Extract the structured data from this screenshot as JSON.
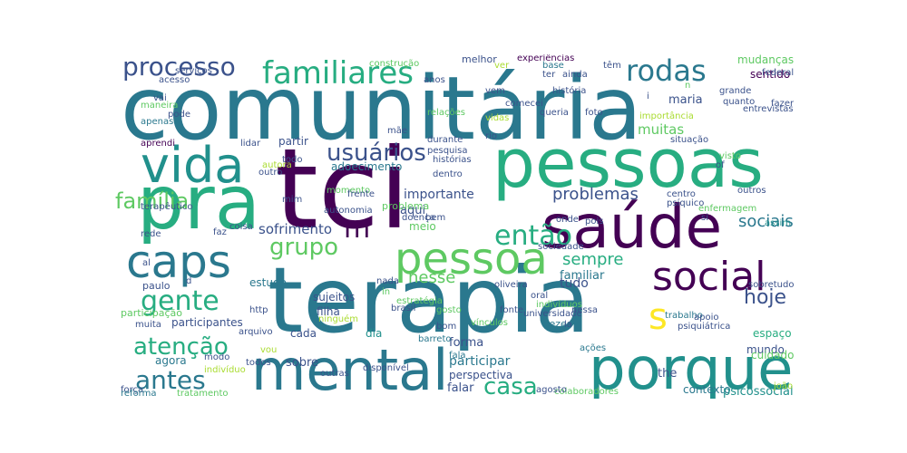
{
  "word_cloud": {
    "palette": [
      "#440154",
      "#3b528b",
      "#2a788e",
      "#21908c",
      "#27ad81",
      "#5ec962",
      "#aadc32",
      "#fde725"
    ],
    "words": [
      {
        "text": "comunitária",
        "color": "#2a788e"
      },
      {
        "text": "tci",
        "color": "#440154"
      },
      {
        "text": "terapia",
        "color": "#2a788e"
      },
      {
        "text": "pessoas",
        "color": "#27ad81"
      },
      {
        "text": "saúde",
        "color": "#440154"
      },
      {
        "text": "pra",
        "color": "#27ad81"
      },
      {
        "text": "mental",
        "color": "#2a788e"
      },
      {
        "text": "porque",
        "color": "#21908c"
      },
      {
        "text": "vida",
        "color": "#21908c"
      },
      {
        "text": "pessoa",
        "color": "#5ec962"
      },
      {
        "text": "caps",
        "color": "#2a788e"
      },
      {
        "text": "social",
        "color": "#440154"
      },
      {
        "text": "familiares",
        "color": "#27ad81"
      },
      {
        "text": "processo",
        "color": "#3b528b"
      },
      {
        "text": "rodas",
        "color": "#2a788e"
      },
      {
        "text": "usuários",
        "color": "#3b528b"
      },
      {
        "text": "então",
        "color": "#27ad81"
      },
      {
        "text": "gente",
        "color": "#27ad81"
      },
      {
        "text": "grupo",
        "color": "#5ec962"
      },
      {
        "text": "atenção",
        "color": "#27ad81"
      },
      {
        "text": "antes",
        "color": "#2a788e"
      },
      {
        "text": "casa",
        "color": "#27ad81"
      },
      {
        "text": "família",
        "color": "#5ec962"
      },
      {
        "text": "hoje",
        "color": "#3b528b"
      },
      {
        "text": "s",
        "color": "#fde725"
      },
      {
        "text": "m",
        "color": "#440154"
      },
      {
        "text": "problemas",
        "color": "#3b528b"
      },
      {
        "text": "sociais",
        "color": "#2a788e"
      },
      {
        "text": "sofrimento",
        "color": "#3b528b"
      },
      {
        "text": "nesse",
        "color": "#5ec962"
      },
      {
        "text": "sempre",
        "color": "#27ad81"
      },
      {
        "text": "partir",
        "color": "#3b528b"
      },
      {
        "text": "adoecimento",
        "color": "#2a788e"
      },
      {
        "text": "importante",
        "color": "#3b528b"
      },
      {
        "text": "muitas",
        "color": "#5ec962"
      },
      {
        "text": "maria",
        "color": "#3b528b"
      },
      {
        "text": "sentido",
        "color": "#440154"
      },
      {
        "text": "mudanças",
        "color": "#5ec962"
      },
      {
        "text": "participantes",
        "color": "#3b528b"
      },
      {
        "text": "sujeitos",
        "color": "#3b528b"
      },
      {
        "text": "paulo",
        "color": "#3b528b"
      },
      {
        "text": "estudo",
        "color": "#2a788e"
      },
      {
        "text": "filha",
        "color": "#3b528b"
      },
      {
        "text": "familiar",
        "color": "#2a788e"
      },
      {
        "text": "tudo",
        "color": "#3b528b"
      },
      {
        "text": "forma",
        "color": "#3b528b"
      },
      {
        "text": "cada",
        "color": "#3b528b"
      },
      {
        "text": "dia",
        "color": "#21908c"
      },
      {
        "text": "agora",
        "color": "#2a788e"
      },
      {
        "text": "sobre",
        "color": "#3b528b"
      },
      {
        "text": "participar",
        "color": "#2a788e"
      },
      {
        "text": "perspectiva",
        "color": "#3b528b"
      },
      {
        "text": "falar",
        "color": "#3b528b"
      },
      {
        "text": "mundo",
        "color": "#3b528b"
      },
      {
        "text": "contexto",
        "color": "#2a788e"
      },
      {
        "text": "psicossocial",
        "color": "#21908c"
      },
      {
        "text": "cuidado",
        "color": "#5ec962"
      },
      {
        "text": "espaço",
        "color": "#27ad81"
      },
      {
        "text": "vezes",
        "color": "#2a788e"
      },
      {
        "text": "the",
        "color": "#3b528b"
      },
      {
        "text": "aqui",
        "color": "#3b528b"
      },
      {
        "text": "meio",
        "color": "#5ec962"
      },
      {
        "text": "problema",
        "color": "#5ec962"
      },
      {
        "text": "pois",
        "color": "#3b528b"
      },
      {
        "text": "sociedade",
        "color": "#3b528b"
      },
      {
        "text": "fonte",
        "color": "#3b528b"
      },
      {
        "text": "barreto",
        "color": "#2a788e"
      },
      {
        "text": "ações",
        "color": "#2a788e"
      },
      {
        "text": "fala",
        "color": "#2a788e"
      },
      {
        "text": "disponível",
        "color": "#3b528b"
      },
      {
        "text": "doença",
        "color": "#3b528b"
      },
      {
        "text": "bom",
        "color": "#3b528b"
      },
      {
        "text": "vínculos",
        "color": "#5ec962"
      },
      {
        "text": "gosto",
        "color": "#5ec962"
      },
      {
        "text": "oliveira",
        "color": "#3b528b"
      },
      {
        "text": "oral",
        "color": "#3b528b"
      },
      {
        "text": "nessa",
        "color": "#3b528b"
      },
      {
        "text": "trabalho",
        "color": "#2a788e"
      },
      {
        "text": "psiquiátrica",
        "color": "#3b528b"
      },
      {
        "text": "la",
        "color": "#3b528b"
      },
      {
        "text": "onde",
        "color": "#3b528b"
      },
      {
        "text": "centro",
        "color": "#3b528b"
      },
      {
        "text": "psíquico",
        "color": "#3b528b"
      },
      {
        "text": "outros",
        "color": "#3b528b"
      },
      {
        "text": "assim",
        "color": "#21908c"
      },
      {
        "text": "visto",
        "color": "#5ec962"
      },
      {
        "text": "histórias",
        "color": "#3b528b"
      },
      {
        "text": "pesquisa",
        "color": "#3b528b"
      },
      {
        "text": "situação",
        "color": "#3b528b"
      },
      {
        "text": "foto",
        "color": "#3b528b"
      },
      {
        "text": "história",
        "color": "#3b528b"
      },
      {
        "text": "comecei",
        "color": "#3b528b"
      },
      {
        "text": "queria",
        "color": "#3b528b"
      },
      {
        "text": "vem",
        "color": "#3b528b"
      },
      {
        "text": "melhor",
        "color": "#3b528b"
      },
      {
        "text": "experiências",
        "color": "#440154"
      },
      {
        "text": "base",
        "color": "#2a788e"
      },
      {
        "text": "ter",
        "color": "#3b528b"
      },
      {
        "text": "ainda",
        "color": "#3b528b"
      },
      {
        "text": "grande",
        "color": "#3b528b"
      },
      {
        "text": "fazer",
        "color": "#3b528b"
      },
      {
        "text": "quanto",
        "color": "#3b528b"
      },
      {
        "text": "federal",
        "color": "#3b528b"
      },
      {
        "text": "importância",
        "color": "#aadc32"
      },
      {
        "text": "serviços",
        "color": "#3b528b"
      },
      {
        "text": "acesso",
        "color": "#3b528b"
      },
      {
        "text": "maneira",
        "color": "#5ec962"
      },
      {
        "text": "apenas",
        "color": "#2a788e"
      },
      {
        "text": "pode",
        "color": "#3b528b"
      },
      {
        "text": "vai",
        "color": "#3b528b"
      },
      {
        "text": "aprendi",
        "color": "#440154"
      },
      {
        "text": "lidar",
        "color": "#3b528b"
      },
      {
        "text": "todo",
        "color": "#3b528b"
      },
      {
        "text": "outro",
        "color": "#3b528b"
      },
      {
        "text": "autora",
        "color": "#aadc32"
      },
      {
        "text": "construção",
        "color": "#5ec962"
      },
      {
        "text": "anos",
        "color": "#3b528b"
      },
      {
        "text": "mãe",
        "color": "#3b528b"
      },
      {
        "text": "durante",
        "color": "#3b528b"
      },
      {
        "text": "dentro",
        "color": "#3b528b"
      },
      {
        "text": "relações",
        "color": "#5ec962"
      },
      {
        "text": "rio",
        "color": "#3b528b"
      },
      {
        "text": "vidas",
        "color": "#aadc32"
      },
      {
        "text": "momento",
        "color": "#5ec962"
      },
      {
        "text": "autonomia",
        "color": "#3b528b"
      },
      {
        "text": "mim",
        "color": "#3b528b"
      },
      {
        "text": "coisa",
        "color": "#3b528b"
      },
      {
        "text": "faz",
        "color": "#3b528b"
      },
      {
        "text": "frente",
        "color": "#3b528b"
      },
      {
        "text": "terapêutico",
        "color": "#3b528b"
      },
      {
        "text": "rede",
        "color": "#3b528b"
      },
      {
        "text": "al",
        "color": "#3b528b"
      },
      {
        "text": "participação",
        "color": "#5ec962"
      },
      {
        "text": "muita",
        "color": "#3b528b"
      },
      {
        "text": "força",
        "color": "#3b528b"
      },
      {
        "text": "reforma",
        "color": "#2a788e"
      },
      {
        "text": "tratamento",
        "color": "#5ec962"
      },
      {
        "text": "indivíduo",
        "color": "#aadc32"
      },
      {
        "text": "todos",
        "color": "#3b528b"
      },
      {
        "text": "outras",
        "color": "#3b528b"
      },
      {
        "text": "modo",
        "color": "#3b528b"
      },
      {
        "text": "vou",
        "color": "#aadc32"
      },
      {
        "text": "http",
        "color": "#3b528b"
      },
      {
        "text": "arquivo",
        "color": "#3b528b"
      },
      {
        "text": "ninguém",
        "color": "#aadc32"
      },
      {
        "text": "in",
        "color": "#5ec962"
      },
      {
        "text": "nada",
        "color": "#3b528b"
      },
      {
        "text": "brasil",
        "color": "#3b528b"
      },
      {
        "text": "estratégia",
        "color": "#5ec962"
      },
      {
        "text": "universidade",
        "color": "#3b528b"
      },
      {
        "text": "indivíduos",
        "color": "#5ec962"
      },
      {
        "text": "apoio",
        "color": "#3b528b"
      },
      {
        "text": "enfermagem",
        "color": "#5ec962"
      },
      {
        "text": "sobretudo",
        "color": "#3b528b"
      },
      {
        "text": "entrevistas",
        "color": "#3b528b"
      },
      {
        "text": "colaboradores",
        "color": "#5ec962"
      },
      {
        "text": "agosto",
        "color": "#3b528b"
      },
      {
        "text": "joão",
        "color": "#aadc32"
      },
      {
        "text": "bem",
        "color": "#3b528b"
      },
      {
        "text": "ver",
        "color": "#aadc32"
      },
      {
        "text": "têm",
        "color": "#3b528b"
      },
      {
        "text": "si",
        "color": "#3b528b"
      },
      {
        "text": "of",
        "color": "#3b528b"
      },
      {
        "text": "n",
        "color": "#5ec962"
      },
      {
        "text": "i",
        "color": "#3b528b"
      },
      {
        "text": "d",
        "color": "#3b528b"
      },
      {
        "text": "c",
        "color": "#3b528b"
      }
    ]
  }
}
